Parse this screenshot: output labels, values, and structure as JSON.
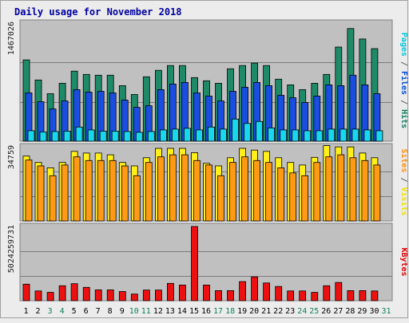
{
  "chart_data": {
    "type": "bar",
    "title": "Daily usage for November 2018",
    "categories": [
      "1",
      "2",
      "3",
      "4",
      "5",
      "6",
      "7",
      "8",
      "9",
      "10",
      "11",
      "12",
      "13",
      "14",
      "15",
      "16",
      "17",
      "18",
      "19",
      "20",
      "21",
      "22",
      "23",
      "24",
      "25",
      "26",
      "27",
      "28",
      "29",
      "30",
      "31"
    ],
    "weekend_categories": [
      "3",
      "4",
      "10",
      "11",
      "17",
      "18",
      "24",
      "25",
      "31"
    ],
    "panels": [
      {
        "id": "hits",
        "max_label": "1467026",
        "ylim": [
          0,
          1467026
        ],
        "legend": [
          {
            "text": "Pages",
            "color": "#00c8dc"
          },
          {
            "text": " / ",
            "color": "#606060"
          },
          {
            "text": "Files",
            "color": "#0050e0"
          },
          {
            "text": " / ",
            "color": "#606060"
          },
          {
            "text": "Hits",
            "color": "#108060"
          }
        ],
        "series": [
          {
            "name": "Hits",
            "color": "#1e8a68",
            "values": [
              1010000,
              760000,
              590000,
              720000,
              870000,
              830000,
              820000,
              820000,
              690000,
              580000,
              800000,
              880000,
              940000,
              940000,
              790000,
              750000,
              720000,
              900000,
              940000,
              970000,
              940000,
              770000,
              700000,
              640000,
              720000,
              830000,
              1170000,
              1400000,
              1270000,
              1150000,
              0
            ]
          },
          {
            "name": "Files",
            "color": "#1a4ee0",
            "values": [
              600000,
              490000,
              400000,
              500000,
              640000,
              610000,
              620000,
              600000,
              510000,
              420000,
              440000,
              640000,
              710000,
              730000,
              600000,
              560000,
              500000,
              620000,
              670000,
              730000,
              690000,
              570000,
              540000,
              480000,
              560000,
              700000,
              690000,
              820000,
              700000,
              590000,
              0
            ]
          },
          {
            "name": "Pages",
            "color": "#18d8f0",
            "values": [
              130000,
              115000,
              120000,
              125000,
              175000,
              140000,
              125000,
              125000,
              120000,
              110000,
              120000,
              140000,
              150000,
              160000,
              140000,
              175000,
              150000,
              275000,
              220000,
              245000,
              165000,
              140000,
              140000,
              130000,
              130000,
              150000,
              150000,
              150000,
              140000,
              130000,
              0
            ]
          }
        ]
      },
      {
        "id": "visits",
        "max_label": "34759",
        "ylim": [
          0,
          34759
        ],
        "legend": [
          {
            "text": "Sites",
            "color": "#ff9010"
          },
          {
            "text": " / ",
            "color": "#606060"
          },
          {
            "text": "Visits",
            "color": "#f0e000"
          }
        ],
        "series": [
          {
            "name": "Visits",
            "color": "#ffef1a",
            "values": [
              30400,
              27400,
              24900,
              27400,
              32600,
              31800,
              31800,
              31000,
              27400,
              25800,
              29600,
              34000,
              34000,
              34000,
              32000,
              27000,
              25800,
              29600,
              34000,
              33200,
              32600,
              29600,
              27400,
              26200,
              29800,
              35300,
              34700,
              34700,
              31800,
              29600,
              0
            ]
          },
          {
            "name": "Sites",
            "color": "#ff9a14",
            "values": [
              28500,
              25800,
              21200,
              26200,
              30000,
              28300,
              28300,
              28300,
              25800,
              21200,
              27400,
              30000,
              31000,
              31000,
              28300,
              26200,
              21200,
              27400,
              30000,
              28300,
              27400,
              24900,
              22500,
              21200,
              27400,
              30000,
              31000,
              29600,
              28300,
              26200,
              0
            ]
          }
        ]
      },
      {
        "id": "kbytes",
        "max_label": "5024259731",
        "ylim": [
          0,
          5024259731
        ],
        "legend": [
          {
            "text": "KBytes",
            "color": "#e00000"
          }
        ],
        "series": [
          {
            "name": "KBytes",
            "color": "#ee1010",
            "values": [
              1120000000,
              660000000,
              560000000,
              1010000000,
              1150000000,
              900000000,
              730000000,
              730000000,
              620000000,
              450000000,
              720000000,
              720000000,
              1170000000,
              1060000000,
              5024259731,
              1060000000,
              680000000,
              680000000,
              1290000000,
              1610000000,
              1200000000,
              960000000,
              660000000,
              660000000,
              560000000,
              1010000000,
              1230000000,
              680000000,
              680000000,
              660000000,
              0
            ]
          }
        ]
      }
    ]
  }
}
